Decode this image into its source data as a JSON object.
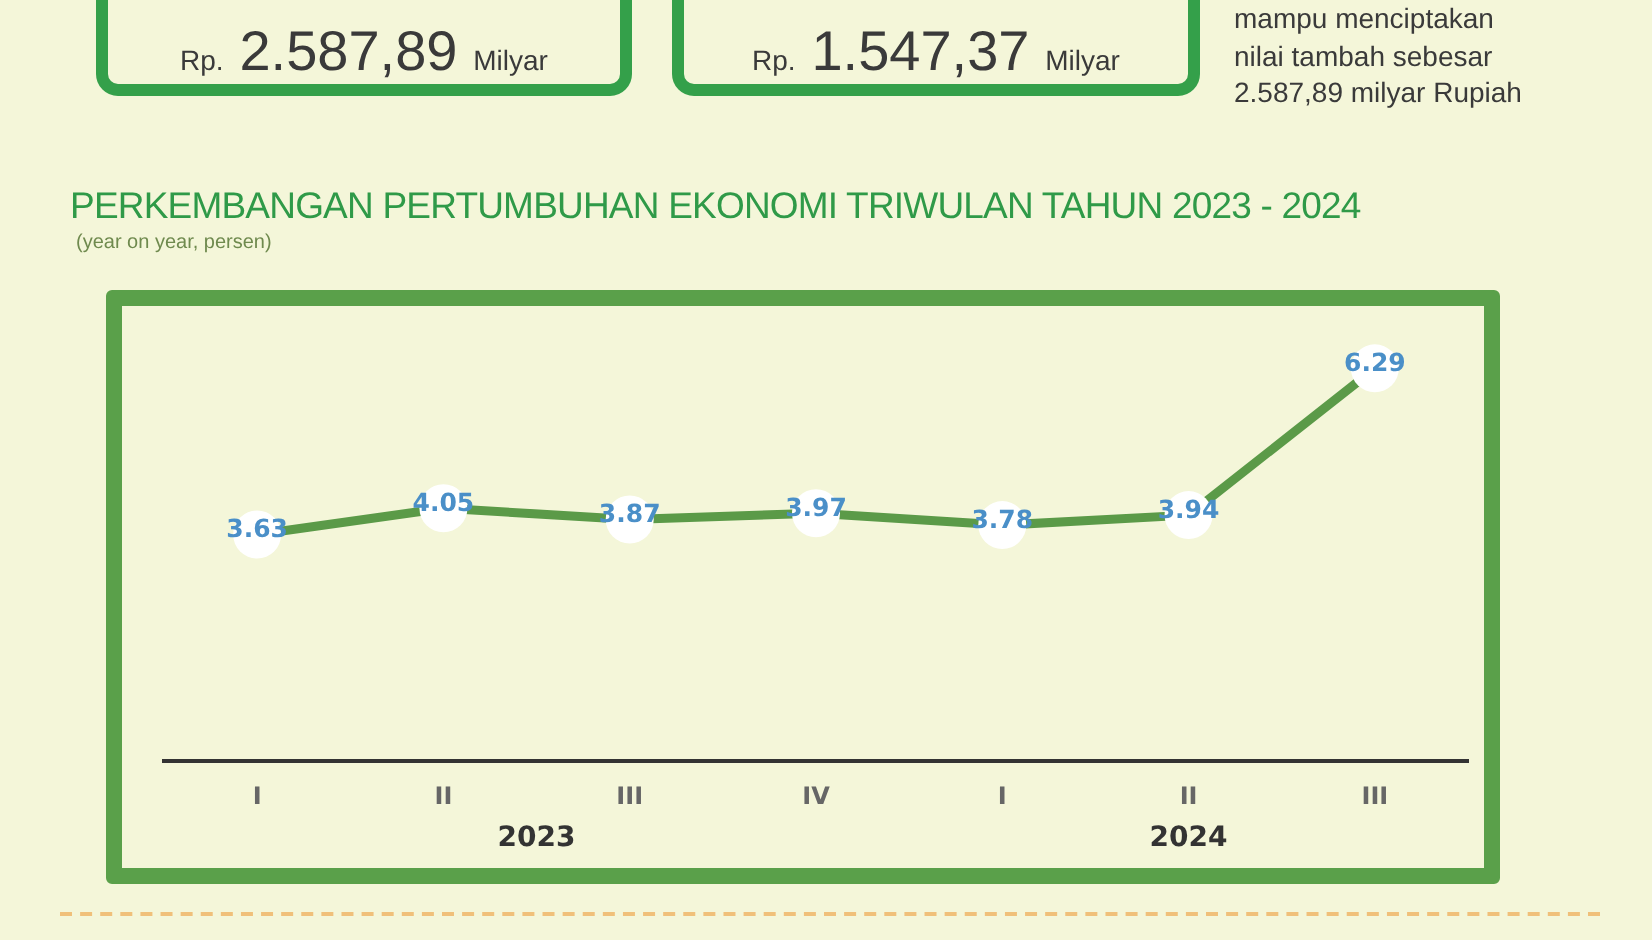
{
  "chart_data": {
    "type": "line",
    "title": "PERKEMBANGAN PERTUMBUHAN EKONOMI TRIWULAN TAHUN 2023 - 2024",
    "subtitle": "(year on year, persen)",
    "categories": [
      "I",
      "II",
      "III",
      "IV",
      "I",
      "II",
      "III"
    ],
    "values": [
      3.63,
      4.05,
      3.87,
      3.97,
      3.78,
      3.94,
      6.29
    ],
    "color": "#5b9a48",
    "tick_labels": "x",
    "data_labels": true,
    "marker": "circle",
    "line_style": "solid",
    "annotations": [
      "Rp. 2.587,89 Milyar",
      "Rp. 1.547,37 Milyar",
      "mampu menciptakan nilai tambah sebesar 2.587,89 milyar Rupiah",
      "2023",
      "2024"
    ]
  }
}
